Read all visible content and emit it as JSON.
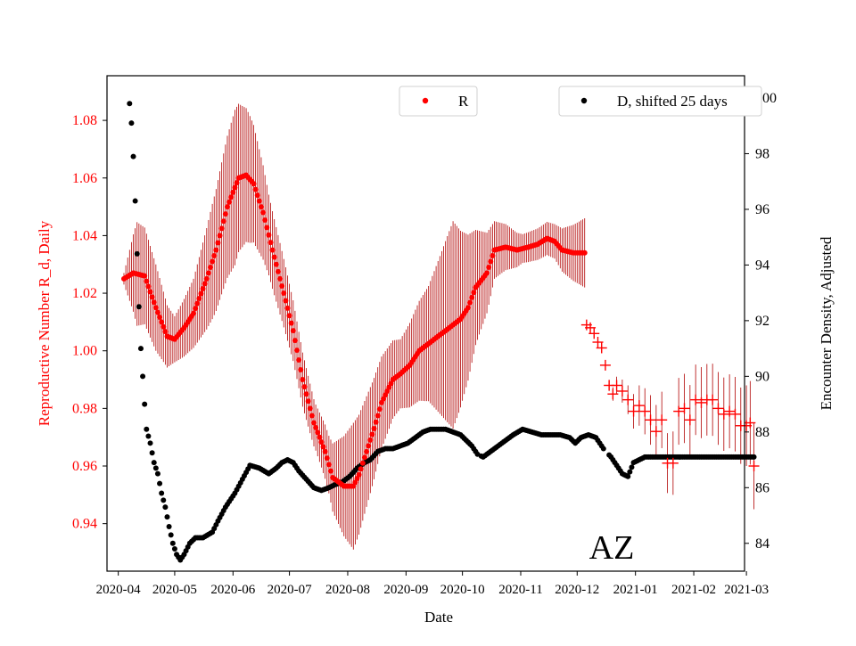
{
  "chart_data": {
    "type": "scatter",
    "title": "",
    "annotation": "AZ",
    "xlabel": "Date",
    "ylabel_left": "Reproductive Number R_d, Daily",
    "ylabel_right": "Encounter Density, Adjusted",
    "x_ticks": [
      "2020-04",
      "2020-05",
      "2020-06",
      "2020-07",
      "2020-08",
      "2020-09",
      "2020-10",
      "2020-11",
      "2020-12",
      "2021-01",
      "2021-02",
      "2021-03"
    ],
    "y_left_ticks": [
      "0.94",
      "0.96",
      "0.98",
      "1.00",
      "1.02",
      "1.04",
      "1.06",
      "1.08"
    ],
    "y_right_ticks": [
      "84",
      "86",
      "88",
      "90",
      "92",
      "94",
      "96",
      "98",
      "100"
    ],
    "y_left_range": [
      0.9235,
      1.0955
    ],
    "y_right_range": [
      83.0,
      100.8
    ],
    "x_range_days": [
      -6,
      333
    ],
    "x_unit": "days since 2020-04-01",
    "colors": {
      "r": "#ff0000",
      "r_err": "#b00000",
      "d": "#000000"
    },
    "legends": {
      "r": {
        "label": "R",
        "placement": "upper-center"
      },
      "d": {
        "label": "D, shifted 25 days",
        "placement": "upper-right"
      }
    },
    "series": [
      {
        "name": "R",
        "color": "#ff0000",
        "marker": "dot",
        "axis": "left",
        "points": [
          [
            3,
            1.025
          ],
          [
            8,
            1.027
          ],
          [
            14,
            1.026
          ],
          [
            20,
            1.015
          ],
          [
            26,
            1.005
          ],
          [
            30,
            1.004
          ],
          [
            35,
            1.008
          ],
          [
            40,
            1.013
          ],
          [
            47,
            1.025
          ],
          [
            52,
            1.035
          ],
          [
            58,
            1.05
          ],
          [
            64,
            1.06
          ],
          [
            68,
            1.061
          ],
          [
            72,
            1.058
          ],
          [
            77,
            1.048
          ],
          [
            82,
            1.035
          ],
          [
            88,
            1.02
          ],
          [
            93,
            1.007
          ],
          [
            98,
            0.99
          ],
          [
            104,
            0.975
          ],
          [
            110,
            0.965
          ],
          [
            114,
            0.956
          ],
          [
            120,
            0.953
          ],
          [
            125,
            0.953
          ],
          [
            128,
            0.957
          ],
          [
            132,
            0.965
          ],
          [
            136,
            0.973
          ],
          [
            140,
            0.982
          ],
          [
            146,
            0.99
          ],
          [
            150,
            0.992
          ],
          [
            155,
            0.995
          ],
          [
            160,
            1.0
          ],
          [
            166,
            1.003
          ],
          [
            172,
            1.006
          ],
          [
            176,
            1.008
          ],
          [
            182,
            1.011
          ],
          [
            186,
            1.015
          ],
          [
            190,
            1.022
          ],
          [
            196,
            1.027
          ],
          [
            200,
            1.035
          ],
          [
            206,
            1.036
          ],
          [
            212,
            1.035
          ],
          [
            218,
            1.036
          ],
          [
            223,
            1.037
          ],
          [
            228,
            1.039
          ],
          [
            232,
            1.038
          ],
          [
            236,
            1.035
          ],
          [
            242,
            1.034
          ],
          [
            248,
            1.034
          ]
        ],
        "error_half_width": [
          [
            3,
            0.002
          ],
          [
            10,
            0.018
          ],
          [
            20,
            0.015
          ],
          [
            30,
            0.008
          ],
          [
            40,
            0.012
          ],
          [
            50,
            0.02
          ],
          [
            62,
            0.027
          ],
          [
            70,
            0.022
          ],
          [
            80,
            0.014
          ],
          [
            95,
            0.01
          ],
          [
            105,
            0.008
          ],
          [
            112,
            0.01
          ],
          [
            125,
            0.022
          ],
          [
            135,
            0.018
          ],
          [
            150,
            0.012
          ],
          [
            165,
            0.02
          ],
          [
            178,
            0.036
          ],
          [
            190,
            0.02
          ],
          [
            200,
            0.01
          ],
          [
            215,
            0.005
          ],
          [
            232,
            0.006
          ],
          [
            248,
            0.012
          ]
        ]
      },
      {
        "name": "R (projected)",
        "color": "#ff0000",
        "marker": "plus",
        "axis": "left",
        "points": [
          [
            249,
            1.009
          ],
          [
            251,
            1.008
          ],
          [
            253,
            1.006
          ],
          [
            255,
            1.003
          ],
          [
            257,
            1.001
          ],
          [
            259,
            0.995
          ],
          [
            261,
            0.988
          ],
          [
            263,
            0.985
          ],
          [
            265,
            0.988
          ],
          [
            268,
            0.986
          ],
          [
            271,
            0.983
          ],
          [
            274,
            0.979
          ],
          [
            277,
            0.981
          ],
          [
            280,
            0.979
          ],
          [
            283,
            0.976
          ],
          [
            286,
            0.972
          ],
          [
            289,
            0.976
          ],
          [
            292,
            0.961
          ],
          [
            295,
            0.961
          ],
          [
            298,
            0.979
          ],
          [
            301,
            0.98
          ],
          [
            304,
            0.976
          ],
          [
            307,
            0.983
          ],
          [
            310,
            0.982
          ],
          [
            313,
            0.983
          ],
          [
            316,
            0.983
          ],
          [
            319,
            0.98
          ],
          [
            322,
            0.978
          ],
          [
            325,
            0.979
          ],
          [
            328,
            0.978
          ],
          [
            331,
            0.974
          ],
          [
            334,
            0.974
          ],
          [
            336,
            0.975
          ],
          [
            338,
            0.96
          ]
        ],
        "error_half_width": [
          [
            249,
            0.001
          ],
          [
            262,
            0.002
          ],
          [
            280,
            0.008
          ],
          [
            300,
            0.012
          ],
          [
            330,
            0.013
          ],
          [
            338,
            0.015
          ]
        ]
      },
      {
        "name": "D, shifted 25 days",
        "color": "#000000",
        "marker": "dot",
        "axis": "right",
        "points": [
          [
            6,
            99.8
          ],
          [
            7,
            99.1
          ],
          [
            8,
            97.9
          ],
          [
            9,
            96.3
          ],
          [
            10,
            94.4
          ],
          [
            11,
            92.5
          ],
          [
            12,
            91.0
          ],
          [
            13,
            90.0
          ],
          [
            14,
            89.0
          ],
          [
            15,
            88.1
          ],
          [
            17,
            87.6
          ],
          [
            19,
            86.9
          ],
          [
            21,
            86.5
          ],
          [
            23,
            85.8
          ],
          [
            25,
            85.3
          ],
          [
            27,
            84.6
          ],
          [
            29,
            84.0
          ],
          [
            31,
            83.6
          ],
          [
            33,
            83.4
          ],
          [
            35,
            83.6
          ],
          [
            38,
            84.0
          ],
          [
            41,
            84.2
          ],
          [
            45,
            84.2
          ],
          [
            50,
            84.4
          ],
          [
            53,
            84.8
          ],
          [
            57,
            85.3
          ],
          [
            62,
            85.8
          ],
          [
            66,
            86.3
          ],
          [
            70,
            86.8
          ],
          [
            75,
            86.7
          ],
          [
            80,
            86.5
          ],
          [
            84,
            86.7
          ],
          [
            87,
            86.9
          ],
          [
            90,
            87.0
          ],
          [
            93,
            86.9
          ],
          [
            96,
            86.6
          ],
          [
            100,
            86.3
          ],
          [
            104,
            86.0
          ],
          [
            108,
            85.9
          ],
          [
            112,
            86.0
          ],
          [
            115,
            86.1
          ],
          [
            119,
            86.2
          ],
          [
            123,
            86.4
          ],
          [
            127,
            86.7
          ],
          [
            131,
            86.9
          ],
          [
            134,
            87.0
          ],
          [
            138,
            87.3
          ],
          [
            142,
            87.4
          ],
          [
            146,
            87.4
          ],
          [
            150,
            87.5
          ],
          [
            154,
            87.6
          ],
          [
            158,
            87.8
          ],
          [
            162,
            88.0
          ],
          [
            166,
            88.1
          ],
          [
            170,
            88.1
          ],
          [
            174,
            88.1
          ],
          [
            178,
            88.0
          ],
          [
            182,
            87.9
          ],
          [
            185,
            87.7
          ],
          [
            188,
            87.5
          ],
          [
            191,
            87.2
          ],
          [
            194,
            87.1
          ],
          [
            198,
            87.3
          ],
          [
            202,
            87.5
          ],
          [
            206,
            87.7
          ],
          [
            210,
            87.9
          ],
          [
            215,
            88.1
          ],
          [
            220,
            88.0
          ],
          [
            225,
            87.9
          ],
          [
            230,
            87.9
          ],
          [
            235,
            87.9
          ],
          [
            240,
            87.8
          ],
          [
            243,
            87.6
          ],
          [
            246,
            87.8
          ],
          [
            250,
            87.9
          ],
          [
            254,
            87.8
          ],
          [
            258,
            87.4
          ],
          [
            262,
            87.1
          ],
          [
            265,
            86.8
          ],
          [
            268,
            86.5
          ],
          [
            271,
            86.4
          ],
          [
            274,
            86.9
          ],
          [
            280,
            87.1
          ],
          [
            290,
            87.1
          ],
          [
            300,
            87.1
          ],
          [
            310,
            87.1
          ],
          [
            320,
            87.1
          ],
          [
            330,
            87.1
          ],
          [
            338,
            87.1
          ]
        ]
      }
    ]
  }
}
